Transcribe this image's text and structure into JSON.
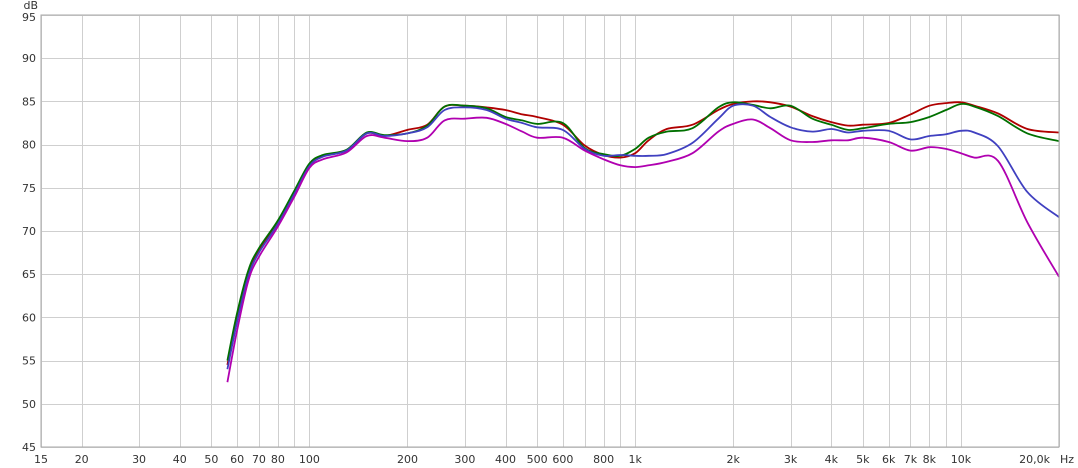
{
  "chart_data": {
    "type": "line",
    "title": "",
    "xlabel": "",
    "ylabel": "",
    "y_unit": "dB",
    "x_unit": "Hz",
    "x_scale": "log",
    "xlim": [
      15,
      20000
    ],
    "ylim": [
      45,
      95
    ],
    "grid": true,
    "legend": "none",
    "y_ticks": [
      45,
      50,
      55,
      60,
      65,
      70,
      75,
      80,
      85,
      90,
      95
    ],
    "y_tick_labels": [
      "45",
      "50",
      "55",
      "60",
      "65",
      "70",
      "75",
      "80",
      "85",
      "90",
      "95"
    ],
    "x_ticks": [
      15,
      20,
      30,
      40,
      50,
      60,
      70,
      80,
      100,
      200,
      300,
      400,
      500,
      600,
      800,
      1000,
      2000,
      3000,
      4000,
      5000,
      6000,
      7000,
      8000,
      10000,
      20000
    ],
    "x_tick_labels": [
      "15",
      "20",
      "30",
      "40",
      "50",
      "60",
      "70",
      "80",
      "100",
      "200",
      "300",
      "400",
      "500",
      "600",
      "800",
      "1k",
      "2k",
      "3k",
      "4k",
      "5k",
      "6k",
      "7k",
      "8k",
      "10k",
      "20,0k"
    ],
    "x_grid": [
      15,
      20,
      30,
      40,
      50,
      60,
      70,
      80,
      90,
      100,
      200,
      300,
      400,
      500,
      600,
      700,
      800,
      900,
      1000,
      2000,
      3000,
      4000,
      5000,
      6000,
      7000,
      8000,
      9000,
      10000,
      20000
    ],
    "series": [
      {
        "color": "#b00000",
        "x": [
          56,
          60,
          65,
          70,
          80,
          90,
          100,
          110,
          130,
          150,
          170,
          200,
          230,
          260,
          300,
          350,
          400,
          450,
          500,
          600,
          700,
          800,
          900,
          1000,
          1100,
          1250,
          1500,
          1800,
          2000,
          2300,
          2600,
          3000,
          3500,
          4000,
          4500,
          5000,
          6000,
          7000,
          8000,
          9000,
          10000,
          11000,
          13000,
          16000,
          20000
        ],
        "y": [
          54.5,
          60.0,
          65.0,
          67.8,
          71.0,
          74.5,
          77.7,
          78.7,
          79.3,
          81.3,
          81.0,
          81.7,
          82.3,
          84.4,
          84.5,
          84.3,
          84.0,
          83.5,
          83.2,
          82.3,
          79.9,
          78.8,
          78.5,
          79.0,
          80.5,
          81.8,
          82.3,
          84.0,
          84.7,
          85.0,
          84.9,
          84.4,
          83.3,
          82.6,
          82.2,
          82.3,
          82.5,
          83.5,
          84.5,
          84.8,
          84.9,
          84.5,
          83.6,
          81.8,
          81.4
        ]
      },
      {
        "color": "#007000",
        "x": [
          56,
          60,
          65,
          70,
          80,
          90,
          100,
          110,
          130,
          150,
          170,
          200,
          230,
          260,
          300,
          350,
          400,
          450,
          500,
          600,
          700,
          800,
          900,
          1000,
          1100,
          1250,
          1500,
          1800,
          2000,
          2300,
          2600,
          3000,
          3500,
          4000,
          4500,
          5000,
          6000,
          7000,
          8000,
          9000,
          10000,
          11000,
          13000,
          16000,
          20000
        ],
        "y": [
          55.0,
          60.5,
          65.5,
          68.0,
          71.2,
          74.7,
          77.8,
          78.8,
          79.4,
          81.4,
          81.1,
          81.3,
          82.2,
          84.4,
          84.5,
          84.2,
          83.2,
          82.8,
          82.4,
          82.5,
          79.6,
          78.9,
          78.7,
          79.5,
          80.8,
          81.5,
          81.9,
          84.3,
          84.9,
          84.6,
          84.2,
          84.5,
          83.0,
          82.3,
          81.7,
          81.9,
          82.4,
          82.6,
          83.2,
          84.0,
          84.7,
          84.4,
          83.3,
          81.3,
          80.4
        ]
      },
      {
        "color": "#4040c0",
        "x": [
          56,
          60,
          65,
          70,
          80,
          90,
          100,
          110,
          130,
          150,
          170,
          200,
          230,
          260,
          300,
          350,
          400,
          450,
          500,
          600,
          700,
          800,
          900,
          1000,
          1100,
          1250,
          1500,
          1800,
          2000,
          2300,
          2600,
          3000,
          3500,
          4000,
          4500,
          5000,
          6000,
          7000,
          8000,
          9000,
          10000,
          11000,
          13000,
          16000,
          20000
        ],
        "y": [
          54.0,
          59.5,
          64.8,
          67.5,
          70.8,
          74.3,
          77.5,
          78.6,
          79.3,
          81.3,
          81.0,
          81.3,
          82.0,
          84.0,
          84.3,
          84.0,
          83.0,
          82.5,
          82.0,
          81.7,
          79.5,
          78.7,
          78.8,
          78.7,
          78.7,
          78.9,
          80.2,
          83.0,
          84.5,
          84.5,
          83.2,
          82.0,
          81.5,
          81.8,
          81.4,
          81.6,
          81.6,
          80.6,
          81.0,
          81.2,
          81.6,
          81.4,
          79.8,
          74.5,
          71.6
        ]
      },
      {
        "color": "#b000b0",
        "x": [
          56,
          60,
          65,
          70,
          80,
          90,
          100,
          110,
          130,
          150,
          170,
          200,
          230,
          260,
          300,
          350,
          400,
          450,
          500,
          600,
          700,
          800,
          900,
          1000,
          1100,
          1250,
          1500,
          1800,
          2000,
          2300,
          2600,
          3000,
          3500,
          4000,
          4500,
          5000,
          6000,
          7000,
          8000,
          9000,
          10000,
          11000,
          13000,
          16000,
          20000
        ],
        "y": [
          52.5,
          58.5,
          64.3,
          67.0,
          70.5,
          74.0,
          77.3,
          78.3,
          79.1,
          81.0,
          80.8,
          80.4,
          80.8,
          82.8,
          83.0,
          83.1,
          82.4,
          81.5,
          80.8,
          80.8,
          79.3,
          78.3,
          77.6,
          77.4,
          77.6,
          78.0,
          79.0,
          81.5,
          82.4,
          82.9,
          81.9,
          80.5,
          80.3,
          80.5,
          80.5,
          80.8,
          80.3,
          79.3,
          79.7,
          79.5,
          79.0,
          78.5,
          78.1,
          71.0,
          64.7
        ]
      }
    ]
  }
}
